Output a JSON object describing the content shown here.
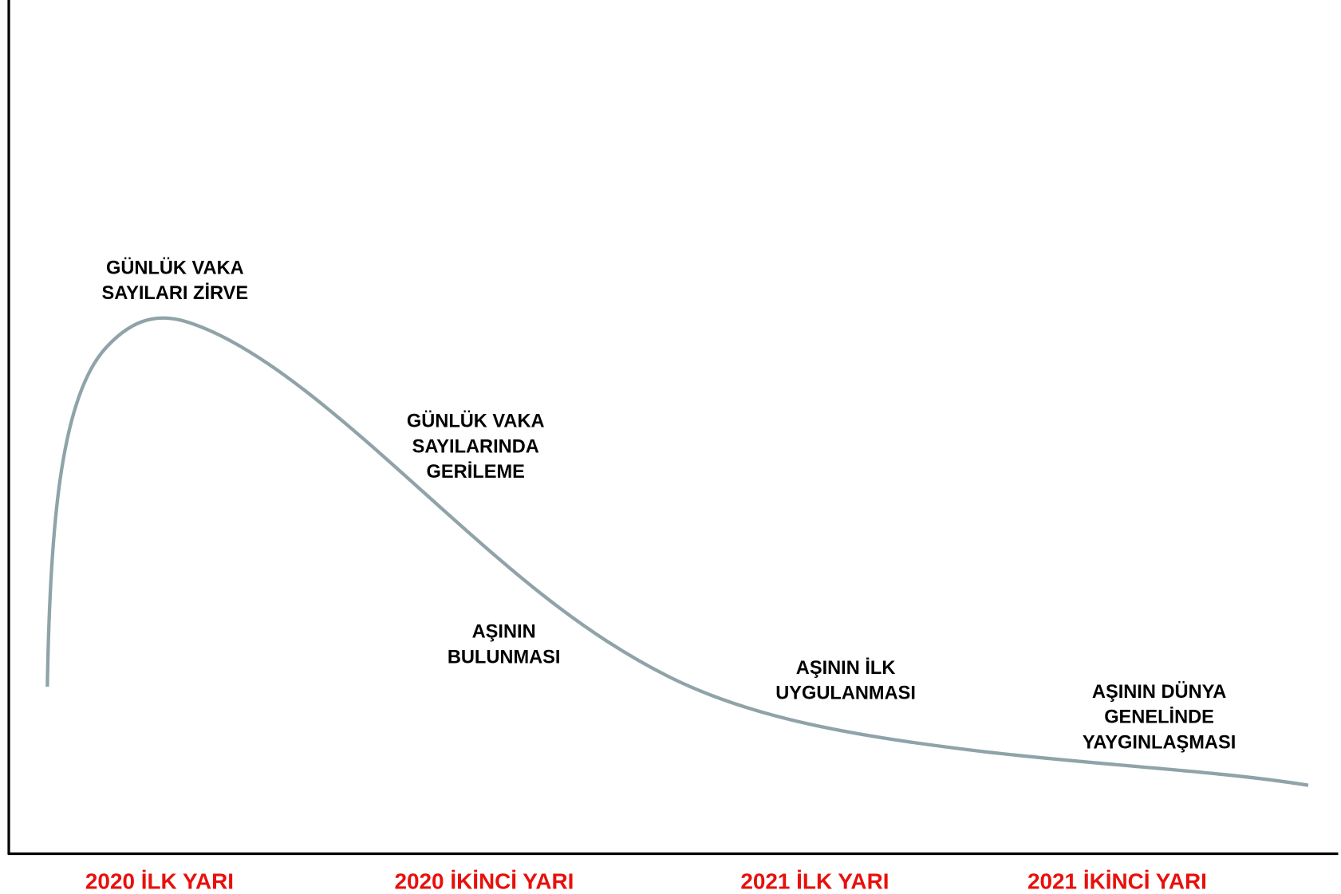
{
  "annotations": [
    {
      "lines": [
        "GÜNLÜK VAKA",
        "SAYILARI ZİRVE"
      ]
    },
    {
      "lines": [
        "GÜNLÜK VAKA",
        "SAYILARINDA",
        "GERİLEME"
      ]
    },
    {
      "lines": [
        "AŞININ",
        "BULUNMASI"
      ]
    },
    {
      "lines": [
        "AŞININ İLK",
        "UYGULANMASI"
      ]
    },
    {
      "lines": [
        "AŞININ DÜNYA",
        "GENELİNDE",
        "YAYGINLAŞMASI"
      ]
    }
  ],
  "periods": [
    "2020 İLK YARI",
    "2020 İKİNCİ YARI",
    "2021 İLK YARI",
    "2021 İKİNCİ YARI"
  ]
}
